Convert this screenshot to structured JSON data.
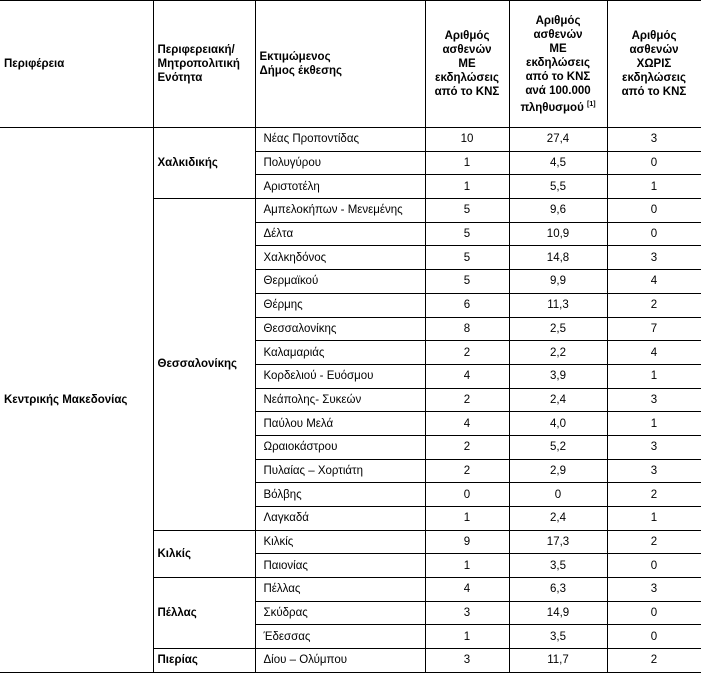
{
  "header": {
    "columns": [
      [
        "Περιφέρεια"
      ],
      [
        "Περιφερειακή/",
        "Μητροπολιτική",
        "Ενότητα"
      ],
      [
        "Εκτιμώμενος",
        "Δήμος έκθεσης"
      ],
      [
        "Αριθμός",
        "ασθενών",
        "ΜΕ",
        "εκδηλώσεις",
        "από το ΚΝΣ"
      ],
      [
        "Αριθμός",
        "ασθενών",
        "ΜΕ",
        "εκδηλώσεις",
        "από το ΚΝΣ",
        "ανά 100.000",
        "πληθυσμού"
      ],
      [
        "Αριθμός",
        "ασθενών",
        "ΧΩΡΙΣ",
        "εκδηλώσεις",
        "από το ΚΝΣ"
      ]
    ],
    "footnote": "[1]"
  },
  "table": {
    "region": "Κεντρικής Μακεδονίας",
    "units": [
      {
        "name": "Χαλκιδικής",
        "rows": [
          [
            "Νέας Προποντίδας",
            "10",
            "27,4",
            "3"
          ],
          [
            "Πολυγύρου",
            "1",
            "4,5",
            "0"
          ],
          [
            "Αριστοτέλη",
            "1",
            "5,5",
            "1"
          ]
        ]
      },
      {
        "name": "Θεσσαλονίκης",
        "rows": [
          [
            "Αμπελοκήπων - Μενεμένης",
            "5",
            "9,6",
            "0"
          ],
          [
            "Δέλτα",
            "5",
            "10,9",
            "0"
          ],
          [
            "Χαλκηδόνος",
            "5",
            "14,8",
            "3"
          ],
          [
            "Θερμαϊκού",
            "5",
            "9,9",
            "4"
          ],
          [
            "Θέρμης",
            "6",
            "11,3",
            "2"
          ],
          [
            "Θεσσαλονίκης",
            "8",
            "2,5",
            "7"
          ],
          [
            "Καλαμαριάς",
            "2",
            "2,2",
            "4"
          ],
          [
            "Κορδελιού - Ευόσμου",
            "4",
            "3,9",
            "1"
          ],
          [
            "Νεάπολης- Συκεών",
            "2",
            "2,4",
            "3"
          ],
          [
            "Παύλου Μελά",
            "4",
            "4,0",
            "1"
          ],
          [
            "Ωραιοκάστρου",
            "2",
            "5,2",
            "3"
          ],
          [
            "Πυλαίας – Χορτιάτη",
            "2",
            "2,9",
            "3"
          ],
          [
            "Βόλβης",
            "0",
            "0",
            "2"
          ],
          [
            "Λαγκαδά",
            "1",
            "2,4",
            "1"
          ]
        ]
      },
      {
        "name": "Κιλκίς",
        "rows": [
          [
            "Κιλκίς",
            "9",
            "17,3",
            "2"
          ],
          [
            "Παιονίας",
            "1",
            "3,5",
            "0"
          ]
        ]
      },
      {
        "name": "Πέλλας",
        "rows": [
          [
            "Πέλλας",
            "4",
            "6,3",
            "3"
          ],
          [
            "Σκύδρας",
            "3",
            "14,9",
            "0"
          ],
          [
            "Έδεσσας",
            "1",
            "3,5",
            "0"
          ]
        ]
      },
      {
        "name": "Πιερίας",
        "rows": [
          [
            "Δίου – Ολύμπου",
            "3",
            "11,7",
            "2"
          ]
        ]
      }
    ]
  }
}
